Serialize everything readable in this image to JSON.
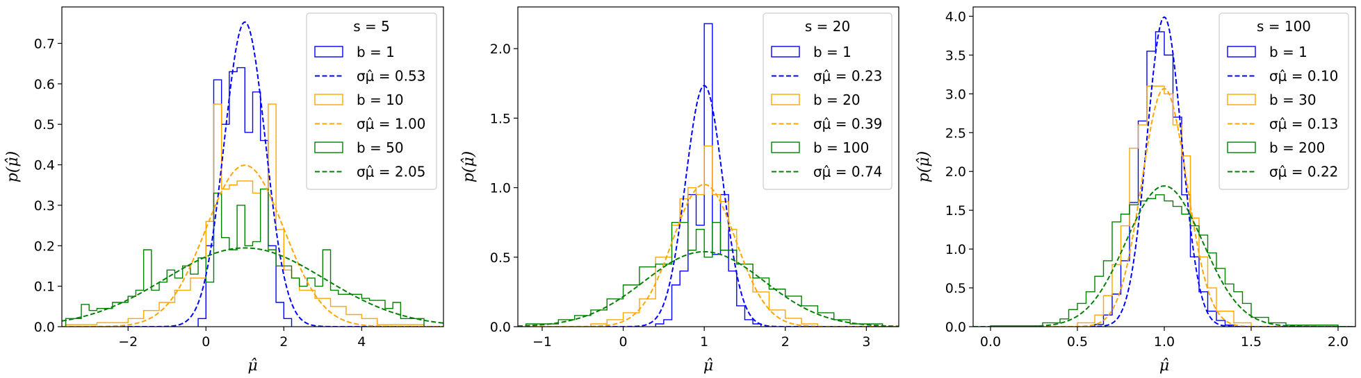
{
  "chart_data": [
    {
      "type": "histogram",
      "xlabel": "μ̂",
      "ylabel": "p(μ̂)",
      "xlim": [
        -3.7,
        6.1
      ],
      "ylim": [
        0,
        0.79
      ],
      "xticks": [
        -2,
        0,
        2,
        4
      ],
      "yticks": [
        0.0,
        0.1,
        0.2,
        0.3,
        0.4,
        0.5,
        0.6,
        0.7
      ],
      "legend": {
        "title": "s = 5",
        "position": "top-right",
        "entries": [
          {
            "label": "b = 1",
            "kind": "hist",
            "color": "#0000ff"
          },
          {
            "label": "σμ̂ = 0.53",
            "kind": "dashed",
            "color": "#0000ff"
          },
          {
            "label": "b = 10",
            "kind": "hist",
            "color": "#ffa500"
          },
          {
            "label": "σμ̂ = 1.00",
            "kind": "dashed",
            "color": "#ffa500"
          },
          {
            "label": "b = 50",
            "kind": "hist",
            "color": "#008000"
          },
          {
            "label": "σμ̂ = 2.05",
            "kind": "dashed",
            "color": "#008000"
          }
        ]
      },
      "series": [
        {
          "name": "b = 1",
          "color": "#0000ff",
          "edges": [
            -0.2,
            0.0,
            0.2,
            0.4,
            0.6,
            0.8,
            1.0,
            1.2,
            1.4,
            1.6,
            1.8,
            2.0,
            2.2
          ],
          "values": [
            0.02,
            0.2,
            0.61,
            0.5,
            0.63,
            0.64,
            0.48,
            0.58,
            0.46,
            0.2,
            0.06,
            0.02
          ]
        },
        {
          "name": "b = 10",
          "color": "#ffa500",
          "edges": [
            -3.6,
            -2.8,
            -2.0,
            -1.6,
            -1.2,
            -0.8,
            -0.4,
            0.0,
            0.2,
            0.4,
            0.6,
            0.8,
            1.0,
            1.2,
            1.4,
            1.6,
            1.8,
            2.0,
            2.2,
            2.4,
            2.8,
            3.2,
            3.6,
            4.0,
            4.4,
            5.6
          ],
          "values": [
            0.005,
            0.01,
            0.02,
            0.04,
            0.06,
            0.09,
            0.12,
            0.26,
            0.55,
            0.34,
            0.35,
            0.36,
            0.36,
            0.33,
            0.34,
            0.55,
            0.24,
            0.14,
            0.12,
            0.09,
            0.07,
            0.05,
            0.03,
            0.02,
            0.005
          ]
        },
        {
          "name": "b = 50",
          "color": "#008000",
          "edges": [
            -3.6,
            -3.2,
            -3.0,
            -2.8,
            -2.4,
            -2.0,
            -1.8,
            -1.6,
            -1.4,
            -1.2,
            -1.0,
            -0.8,
            -0.6,
            -0.4,
            -0.2,
            0.0,
            0.2,
            0.4,
            0.6,
            0.8,
            1.0,
            1.2,
            1.4,
            1.6,
            1.8,
            2.0,
            2.2,
            2.4,
            2.6,
            2.8,
            3.0,
            3.2,
            3.4,
            3.6,
            4.0,
            4.2,
            4.6,
            4.8,
            5.0,
            5.6
          ],
          "values": [
            0.02,
            0.055,
            0.04,
            0.045,
            0.06,
            0.075,
            0.09,
            0.19,
            0.09,
            0.11,
            0.14,
            0.12,
            0.15,
            0.13,
            0.17,
            0.11,
            0.33,
            0.22,
            0.19,
            0.3,
            0.2,
            0.21,
            0.34,
            0.19,
            0.15,
            0.15,
            0.12,
            0.1,
            0.12,
            0.1,
            0.19,
            0.09,
            0.08,
            0.08,
            0.07,
            0.065,
            0.045,
            0.06,
            0.02
          ]
        }
      ],
      "curves": [
        {
          "name": "σμ̂ = 0.53",
          "color": "#0000ff",
          "mu": 1.0,
          "sigma": 0.53
        },
        {
          "name": "σμ̂ = 1.00",
          "color": "#ffa500",
          "mu": 1.0,
          "sigma": 1.0
        },
        {
          "name": "σμ̂ = 2.05",
          "color": "#008000",
          "mu": 1.0,
          "sigma": 2.05
        }
      ]
    },
    {
      "type": "histogram",
      "xlabel": "μ̂",
      "ylabel": "p(μ̂)",
      "xlim": [
        -1.3,
        3.4
      ],
      "ylim": [
        0,
        2.3
      ],
      "xticks": [
        -1,
        0,
        1,
        2,
        3
      ],
      "yticks": [
        0.0,
        0.5,
        1.0,
        1.5,
        2.0
      ],
      "legend": {
        "title": "s = 20",
        "position": "top-right",
        "entries": [
          {
            "label": "b = 1",
            "kind": "hist",
            "color": "#0000ff"
          },
          {
            "label": "σμ̂ = 0.23",
            "kind": "dashed",
            "color": "#0000ff"
          },
          {
            "label": "b = 20",
            "kind": "hist",
            "color": "#ffa500"
          },
          {
            "label": "σμ̂ = 0.39",
            "kind": "dashed",
            "color": "#ffa500"
          },
          {
            "label": "b = 100",
            "kind": "hist",
            "color": "#008000"
          },
          {
            "label": "σμ̂ = 0.74",
            "kind": "dashed",
            "color": "#008000"
          }
        ]
      },
      "series": [
        {
          "name": "b = 1",
          "color": "#0000ff",
          "edges": [
            0.4,
            0.5,
            0.6,
            0.7,
            0.8,
            0.9,
            1.0,
            1.1,
            1.2,
            1.3,
            1.4,
            1.5,
            1.6,
            1.7
          ],
          "values": [
            0.02,
            0.05,
            0.3,
            0.4,
            0.95,
            0.73,
            2.18,
            0.52,
            0.95,
            0.4,
            0.15,
            0.05,
            0.02
          ]
        },
        {
          "name": "b = 20",
          "color": "#ffa500",
          "edges": [
            -0.4,
            -0.2,
            0.0,
            0.2,
            0.4,
            0.6,
            0.7,
            0.8,
            0.9,
            1.0,
            1.1,
            1.2,
            1.3,
            1.4,
            1.6,
            1.8,
            2.0,
            2.2,
            2.4
          ],
          "values": [
            0.02,
            0.05,
            0.1,
            0.2,
            0.5,
            0.73,
            0.92,
            1.0,
            0.95,
            1.3,
            0.95,
            0.9,
            0.7,
            0.45,
            0.25,
            0.12,
            0.06,
            0.02
          ]
        },
        {
          "name": "b = 100",
          "color": "#008000",
          "edges": [
            -1.2,
            -0.8,
            -0.6,
            -0.4,
            -0.2,
            0.0,
            0.2,
            0.4,
            0.6,
            0.8,
            0.9,
            1.0,
            1.1,
            1.2,
            1.4,
            1.6,
            1.8,
            2.0,
            2.2,
            2.4,
            2.6,
            2.8,
            3.2
          ],
          "values": [
            0.02,
            0.05,
            0.08,
            0.12,
            0.2,
            0.3,
            0.43,
            0.45,
            0.75,
            0.55,
            0.7,
            0.5,
            0.75,
            0.55,
            0.45,
            0.35,
            0.27,
            0.22,
            0.15,
            0.1,
            0.05,
            0.02
          ]
        }
      ],
      "curves": [
        {
          "name": "σμ̂ = 0.23",
          "color": "#0000ff",
          "mu": 1.0,
          "sigma": 0.23
        },
        {
          "name": "σμ̂ = 0.39",
          "color": "#ffa500",
          "mu": 1.0,
          "sigma": 0.39
        },
        {
          "name": "σμ̂ = 0.74",
          "color": "#008000",
          "mu": 1.0,
          "sigma": 0.74
        }
      ]
    },
    {
      "type": "histogram",
      "xlabel": "μ̂",
      "ylabel": "p(μ̂)",
      "xlim": [
        -0.1,
        2.1
      ],
      "ylim": [
        0,
        4.12
      ],
      "xticks": [
        0.0,
        0.5,
        1.0,
        1.5,
        2.0
      ],
      "yticks": [
        0.0,
        0.5,
        1.0,
        1.5,
        2.0,
        2.5,
        3.0,
        3.5,
        4.0
      ],
      "legend": {
        "title": "s = 100",
        "position": "top-right",
        "entries": [
          {
            "label": "b = 1",
            "kind": "hist",
            "color": "#0000ff"
          },
          {
            "label": "σμ̂ = 0.10",
            "kind": "dashed",
            "color": "#0000ff"
          },
          {
            "label": "b = 30",
            "kind": "hist",
            "color": "#ffa500"
          },
          {
            "label": "σμ̂ = 0.13",
            "kind": "dashed",
            "color": "#ffa500"
          },
          {
            "label": "b = 200",
            "kind": "hist",
            "color": "#008000"
          },
          {
            "label": "σμ̂ = 0.22",
            "kind": "dashed",
            "color": "#008000"
          }
        ]
      },
      "series": [
        {
          "name": "b = 1",
          "color": "#0000ff",
          "edges": [
            0.6,
            0.65,
            0.7,
            0.75,
            0.8,
            0.85,
            0.9,
            0.95,
            1.0,
            1.05,
            1.1,
            1.15,
            1.2,
            1.25,
            1.3,
            1.35,
            1.4
          ],
          "values": [
            0.03,
            0.15,
            0.42,
            0.85,
            1.6,
            2.65,
            3.55,
            3.8,
            3.5,
            2.7,
            1.7,
            0.9,
            0.45,
            0.2,
            0.08,
            0.02
          ]
        },
        {
          "name": "b = 30",
          "color": "#ffa500",
          "edges": [
            0.5,
            0.6,
            0.65,
            0.7,
            0.75,
            0.8,
            0.85,
            0.9,
            0.95,
            1.0,
            1.05,
            1.1,
            1.15,
            1.2,
            1.25,
            1.3,
            1.4,
            1.5
          ],
          "values": [
            0.05,
            0.15,
            0.4,
            0.8,
            1.3,
            2.3,
            2.6,
            3.1,
            3.1,
            3.0,
            2.6,
            2.2,
            1.4,
            0.9,
            0.5,
            0.2,
            0.05
          ]
        },
        {
          "name": "b = 200",
          "color": "#008000",
          "edges": [
            0.0,
            0.3,
            0.4,
            0.45,
            0.5,
            0.55,
            0.6,
            0.65,
            0.7,
            0.75,
            0.8,
            0.85,
            0.9,
            0.95,
            1.0,
            1.05,
            1.1,
            1.15,
            1.2,
            1.25,
            1.3,
            1.35,
            1.4,
            1.45,
            1.5,
            1.6,
            1.7,
            2.0
          ],
          "values": [
            0.01,
            0.05,
            0.1,
            0.22,
            0.3,
            0.45,
            0.65,
            0.85,
            1.35,
            1.45,
            1.57,
            1.62,
            1.65,
            1.7,
            1.62,
            1.55,
            1.45,
            1.3,
            1.18,
            0.95,
            0.75,
            0.55,
            0.45,
            0.3,
            0.12,
            0.05,
            0.02
          ]
        }
      ],
      "curves": [
        {
          "name": "σμ̂ = 0.10",
          "color": "#0000ff",
          "mu": 1.0,
          "sigma": 0.1
        },
        {
          "name": "σμ̂ = 0.13",
          "color": "#ffa500",
          "mu": 1.0,
          "sigma": 0.13
        },
        {
          "name": "σμ̂ = 0.22",
          "color": "#008000",
          "mu": 1.0,
          "sigma": 0.22
        }
      ]
    }
  ]
}
